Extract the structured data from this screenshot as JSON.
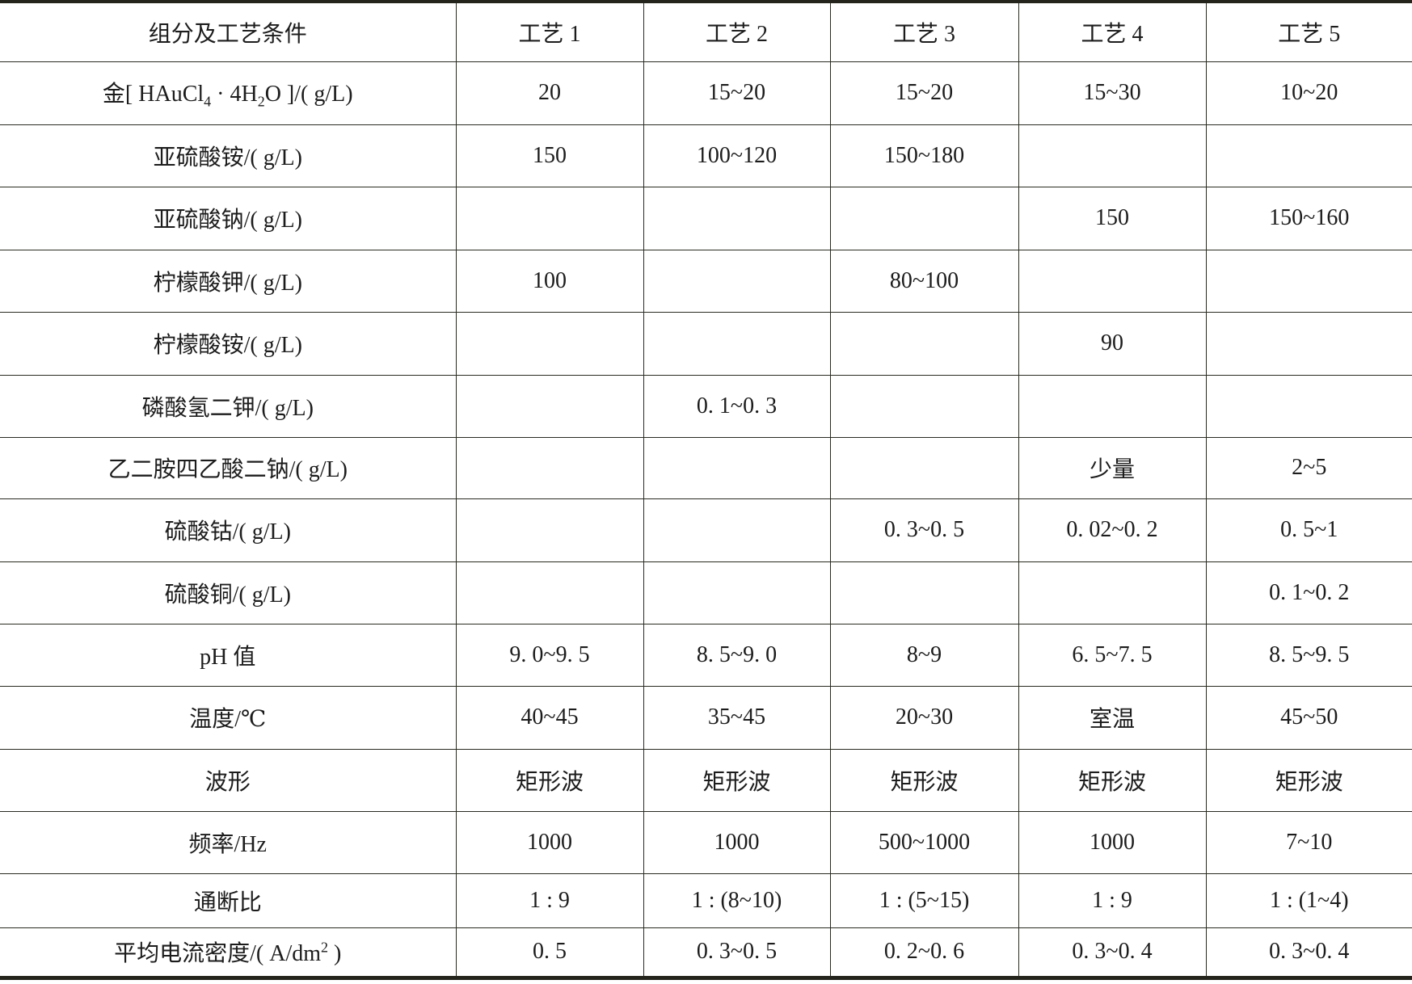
{
  "table": {
    "header": [
      "组分及工艺条件",
      "工艺 1",
      "工艺 2",
      "工艺 3",
      "工艺 4",
      "工艺 5"
    ],
    "rows": [
      {
        "label": {
          "a": "金[ HAuCl",
          "sub1": "4",
          "b": " · 4H",
          "sub2": "2",
          "c": "O ]/( g/L)"
        },
        "cells": [
          "20",
          "15~20",
          "15~20",
          "15~30",
          "10~20"
        ]
      },
      {
        "label": {
          "a": "亚硫酸铵/( g/L)"
        },
        "cells": [
          "150",
          "100~120",
          "150~180",
          "",
          ""
        ]
      },
      {
        "label": {
          "a": "亚硫酸钠/( g/L)"
        },
        "cells": [
          "",
          "",
          "",
          "150",
          "150~160"
        ]
      },
      {
        "label": {
          "a": "柠檬酸钾/( g/L)"
        },
        "cells": [
          "100",
          "",
          "80~100",
          "",
          ""
        ]
      },
      {
        "label": {
          "a": "柠檬酸铵/( g/L)"
        },
        "cells": [
          "",
          "",
          "",
          "90",
          ""
        ]
      },
      {
        "label": {
          "a": "磷酸氢二钾/( g/L)"
        },
        "cells": [
          "",
          "0. 1~0. 3",
          "",
          "",
          ""
        ]
      },
      {
        "label": {
          "a": "乙二胺四乙酸二钠/( g/L)"
        },
        "cells": [
          "",
          "",
          "",
          "少量",
          "2~5"
        ]
      },
      {
        "label": {
          "a": "硫酸钴/( g/L)"
        },
        "cells": [
          "",
          "",
          "0. 3~0. 5",
          "0. 02~0. 2",
          "0. 5~1"
        ]
      },
      {
        "label": {
          "a": "硫酸铜/( g/L)"
        },
        "cells": [
          "",
          "",
          "",
          "",
          "0. 1~0. 2"
        ]
      },
      {
        "label": {
          "a": "pH 值"
        },
        "cells": [
          "9. 0~9. 5",
          "8. 5~9. 0",
          "8~9",
          "6. 5~7. 5",
          "8. 5~9. 5"
        ]
      },
      {
        "label": {
          "a": "温度/℃"
        },
        "cells": [
          "40~45",
          "35~45",
          "20~30",
          "室温",
          "45~50"
        ]
      },
      {
        "label": {
          "a": "波形"
        },
        "cells": [
          "矩形波",
          "矩形波",
          "矩形波",
          "矩形波",
          "矩形波"
        ]
      },
      {
        "label": {
          "a": "频率/Hz"
        },
        "cells": [
          "1000",
          "1000",
          "500~1000",
          "1000",
          "7~10"
        ]
      },
      {
        "label": {
          "a": "通断比"
        },
        "cells": [
          "1 : 9",
          "1 : (8~10)",
          "1 : (5~15)",
          "1 : 9",
          "1 : (1~4)"
        ]
      },
      {
        "label": {
          "a": "平均电流密度/( A/dm",
          "sup1": "2",
          "c": " )"
        },
        "cells": [
          "0. 5",
          "0. 3~0. 5",
          "0. 2~0. 6",
          "0. 3~0. 4",
          "0. 3~0. 4"
        ]
      }
    ]
  }
}
